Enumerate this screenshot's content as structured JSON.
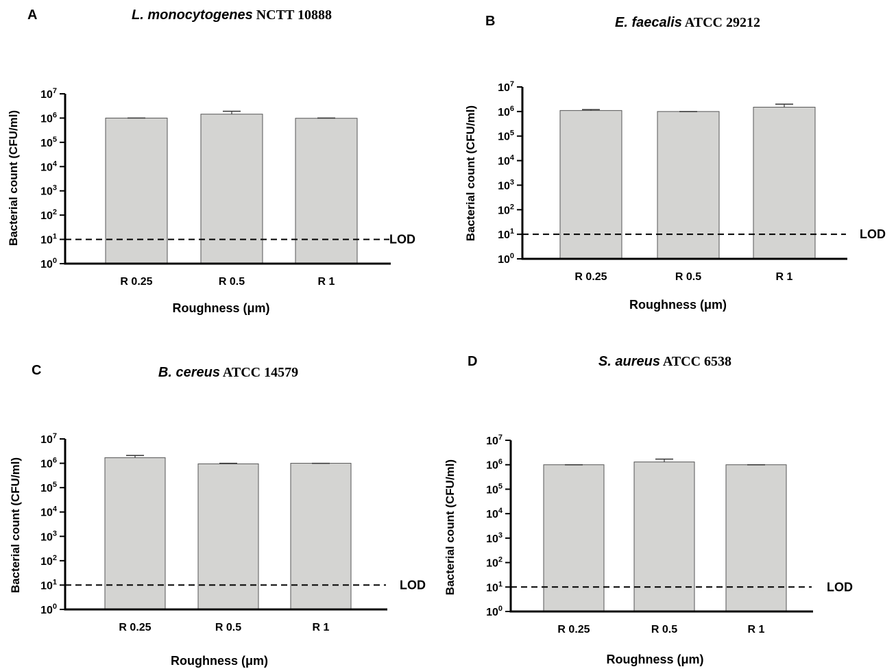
{
  "chart_data": [
    {
      "type": "bar",
      "panel_letter": "A",
      "title_species": "L. monocytogenes",
      "title_strain": "NCTT 10888",
      "categories": [
        "R 0.25",
        "R 0.5",
        "R 1"
      ],
      "values": [
        1000000,
        1450000,
        980000
      ],
      "error_upper": [
        1000000,
        1900000,
        1000000
      ],
      "xlabel": "Roughness (μm)",
      "ylabel": "Bacterial count (CFU/ml)",
      "yscale": "log",
      "ylim": [
        1,
        10000000
      ],
      "ytick_labels": [
        "10",
        "10",
        "10",
        "10",
        "10",
        "10",
        "10",
        "10"
      ],
      "ytick_exponents": [
        "0",
        "1",
        "2",
        "3",
        "4",
        "5",
        "6",
        "7"
      ],
      "reference_line": {
        "value": 10,
        "label": "LOD",
        "style": "dashed"
      },
      "grid": false,
      "bar_color": "#d4d4d2"
    },
    {
      "type": "bar",
      "panel_letter": "B",
      "title_species": "E. faecalis",
      "title_strain": "ATCC 29212",
      "categories": [
        "R 0.25",
        "R 0.5",
        "R 1"
      ],
      "values": [
        1100000,
        1000000,
        1500000
      ],
      "error_upper": [
        1200000,
        1000000,
        2000000
      ],
      "xlabel": "Roughness (μm)",
      "ylabel": "Bacterial count (CFU/ml)",
      "yscale": "log",
      "ylim": [
        1,
        10000000
      ],
      "ytick_labels": [
        "10",
        "10",
        "10",
        "10",
        "10",
        "10",
        "10",
        "10"
      ],
      "ytick_exponents": [
        "0",
        "1",
        "2",
        "3",
        "4",
        "5",
        "6",
        "7"
      ],
      "reference_line": {
        "value": 10,
        "label": "LOD",
        "style": "dashed"
      },
      "grid": false,
      "bar_color": "#d4d4d2"
    },
    {
      "type": "bar",
      "panel_letter": "C",
      "title_species": "B. cereus",
      "title_strain": "ATCC 14579",
      "categories": [
        "R 0.25",
        "R 0.5",
        "R 1"
      ],
      "values": [
        1700000,
        950000,
        1000000
      ],
      "error_upper": [
        2100000,
        1000000,
        1000000
      ],
      "xlabel": "Roughness (μm)",
      "ylabel": "Bacterial count (CFU/ml)",
      "yscale": "log",
      "ylim": [
        1,
        10000000
      ],
      "ytick_labels": [
        "10",
        "10",
        "10",
        "10",
        "10",
        "10",
        "10",
        "10"
      ],
      "ytick_exponents": [
        "0",
        "1",
        "2",
        "3",
        "4",
        "5",
        "6",
        "7"
      ],
      "reference_line": {
        "value": 10,
        "label": "LOD",
        "style": "dashed"
      },
      "grid": false,
      "bar_color": "#d4d4d2"
    },
    {
      "type": "bar",
      "panel_letter": "D",
      "title_species": "S. aureus",
      "title_strain": "ATCC 6538",
      "categories": [
        "R 0.25",
        "R 0.5",
        "R 1"
      ],
      "values": [
        1000000,
        1300000,
        1000000
      ],
      "error_upper": [
        1000000,
        1700000,
        1000000
      ],
      "xlabel": "Roughness (μm)",
      "ylabel": "Bacterial count (CFU/ml)",
      "yscale": "log",
      "ylim": [
        1,
        10000000
      ],
      "ytick_labels": [
        "10",
        "10",
        "10",
        "10",
        "10",
        "10",
        "10",
        "10"
      ],
      "ytick_exponents": [
        "0",
        "1",
        "2",
        "3",
        "4",
        "5",
        "6",
        "7"
      ],
      "reference_line": {
        "value": 10,
        "label": "LOD",
        "style": "dashed"
      },
      "grid": false,
      "bar_color": "#d4d4d2"
    }
  ]
}
